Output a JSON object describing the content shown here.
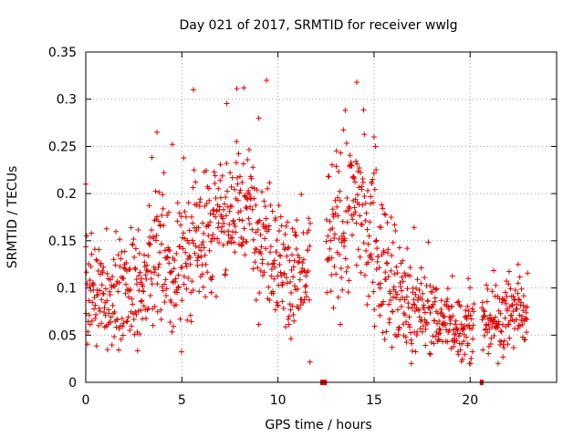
{
  "chart_data": {
    "type": "scatter",
    "title": "Day 021 of 2017, SRMTID for receiver wwlg",
    "xlabel": "GPS time / hours",
    "ylabel": "SRMTID / TECUs",
    "xlim": [
      0,
      24.5
    ],
    "ylim": [
      0,
      0.35
    ],
    "xticks": [
      0,
      5,
      10,
      15,
      20
    ],
    "yticks": [
      0,
      0.05,
      0.1,
      0.15,
      0.2,
      0.25,
      0.3,
      0.35
    ],
    "x_tick_labels": [
      "0",
      "5",
      "10",
      "15",
      "20"
    ],
    "y_tick_labels": [
      "0",
      "0.05",
      "0.1",
      "0.15",
      "0.2",
      "0.25",
      "0.3",
      "0.35"
    ],
    "grid": true,
    "marker": "+",
    "color": "#e00000",
    "trend": [
      {
        "x": 0.0,
        "center": 0.105,
        "spread": 0.035
      },
      {
        "x": 1.0,
        "center": 0.09,
        "spread": 0.03
      },
      {
        "x": 2.0,
        "center": 0.088,
        "spread": 0.03
      },
      {
        "x": 3.0,
        "center": 0.1,
        "spread": 0.035
      },
      {
        "x": 3.8,
        "center": 0.14,
        "spread": 0.05
      },
      {
        "x": 4.5,
        "center": 0.1,
        "spread": 0.04
      },
      {
        "x": 5.5,
        "center": 0.15,
        "spread": 0.05
      },
      {
        "x": 6.5,
        "center": 0.16,
        "spread": 0.04
      },
      {
        "x": 7.5,
        "center": 0.18,
        "spread": 0.035
      },
      {
        "x": 8.5,
        "center": 0.18,
        "spread": 0.04
      },
      {
        "x": 9.5,
        "center": 0.15,
        "spread": 0.045
      },
      {
        "x": 10.5,
        "center": 0.12,
        "spread": 0.04
      },
      {
        "x": 11.5,
        "center": 0.11,
        "spread": 0.04
      },
      {
        "x": 12.0,
        "center": 0.14,
        "spread": 0.06
      },
      {
        "x": 13.0,
        "center": 0.15,
        "spread": 0.05
      },
      {
        "x": 14.0,
        "center": 0.2,
        "spread": 0.05
      },
      {
        "x": 15.0,
        "center": 0.15,
        "spread": 0.05
      },
      {
        "x": 16.0,
        "center": 0.1,
        "spread": 0.04
      },
      {
        "x": 17.0,
        "center": 0.08,
        "spread": 0.03
      },
      {
        "x": 18.0,
        "center": 0.07,
        "spread": 0.025
      },
      {
        "x": 19.0,
        "center": 0.06,
        "spread": 0.02
      },
      {
        "x": 20.0,
        "center": 0.055,
        "spread": 0.02
      },
      {
        "x": 21.0,
        "center": 0.06,
        "spread": 0.02
      },
      {
        "x": 22.0,
        "center": 0.075,
        "spread": 0.025
      },
      {
        "x": 23.0,
        "center": 0.075,
        "spread": 0.025
      }
    ],
    "data_gaps": [
      {
        "x_start": 11.7,
        "x_end": 12.5,
        "approx_y": 0.0
      },
      {
        "x_start": 20.2,
        "x_end": 20.6,
        "approx_y": 0.0
      }
    ],
    "sampled_peaks": [
      {
        "x": 0.0,
        "y": 0.21
      },
      {
        "x": 3.7,
        "y": 0.265
      },
      {
        "x": 5.6,
        "y": 0.31
      },
      {
        "x": 9.0,
        "y": 0.28
      },
      {
        "x": 14.1,
        "y": 0.318
      },
      {
        "x": 15.0,
        "y": 0.26
      },
      {
        "x": 19.9,
        "y": 0.11
      },
      {
        "x": 22.5,
        "y": 0.125
      }
    ],
    "zero_markers": [
      {
        "x": 12.3,
        "y": 0.0
      },
      {
        "x": 12.45,
        "y": 0.0
      },
      {
        "x": 20.6,
        "y": 0.0
      }
    ]
  }
}
